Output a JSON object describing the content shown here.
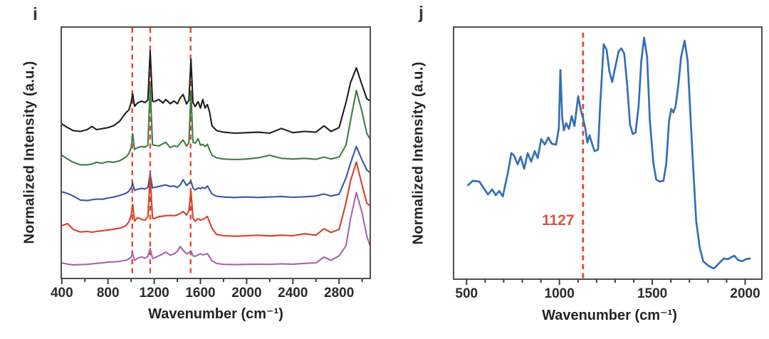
{
  "figure": {
    "background": "#ffffff",
    "axis_text_color": "#2b2b2b",
    "box_color": "#4f4f4f"
  },
  "chart_data": [
    {
      "id": "panel_i",
      "type": "line",
      "panel_label": "i",
      "xlabel": "Wavenumber (cm⁻¹)",
      "ylabel": "Normalized  Intensity (a.u.)",
      "y_unit": "normalized intensity, arbitrary units (curves offset-stacked; y = fraction of panel height)",
      "x_range": [
        395,
        3070
      ],
      "x_axis": {
        "major_ticks": [
          400,
          800,
          1200,
          1600,
          2000,
          2400,
          2800
        ],
        "minor_ticks": [
          600,
          1000,
          1400,
          1800,
          2200,
          2600,
          3000
        ]
      },
      "grid": false,
      "legend": false,
      "dashed_lines": [
        1010,
        1165,
        1515
      ],
      "dashed_color": "#e8462f",
      "x": [
        400,
        450,
        500,
        560,
        620,
        660,
        700,
        750,
        800,
        850,
        900,
        935,
        960,
        980,
        1000,
        1013,
        1030,
        1055,
        1090,
        1120,
        1145,
        1165,
        1185,
        1200,
        1240,
        1275,
        1300,
        1340,
        1370,
        1400,
        1425,
        1450,
        1480,
        1500,
        1518,
        1535,
        1555,
        1580,
        1600,
        1620,
        1640,
        1660,
        1680,
        1700,
        1740,
        1800,
        1900,
        2000,
        2100,
        2200,
        2300,
        2400,
        2500,
        2600,
        2670,
        2730,
        2800,
        2860,
        2900,
        2950,
        3000,
        3040,
        3070
      ],
      "series": [
        {
          "name": "spectrum-black",
          "color": "#1f1f1f",
          "y": [
            0.615,
            0.6,
            0.588,
            0.585,
            0.592,
            0.605,
            0.592,
            0.596,
            0.6,
            0.608,
            0.625,
            0.647,
            0.662,
            0.67,
            0.7,
            0.735,
            0.685,
            0.698,
            0.705,
            0.7,
            0.71,
            0.905,
            0.705,
            0.703,
            0.712,
            0.698,
            0.712,
            0.695,
            0.706,
            0.695,
            0.718,
            0.732,
            0.694,
            0.71,
            0.872,
            0.7,
            0.684,
            0.703,
            0.678,
            0.712,
            0.678,
            0.692,
            0.66,
            0.607,
            0.588,
            0.582,
            0.578,
            0.58,
            0.582,
            0.578,
            0.597,
            0.58,
            0.585,
            0.582,
            0.607,
            0.585,
            0.6,
            0.7,
            0.78,
            0.838,
            0.768,
            0.715,
            0.706
          ]
        },
        {
          "name": "spectrum-green",
          "color": "#3e7d46",
          "y": [
            0.49,
            0.475,
            0.462,
            0.452,
            0.452,
            0.455,
            0.462,
            0.458,
            0.465,
            0.462,
            0.468,
            0.477,
            0.485,
            0.497,
            0.52,
            0.576,
            0.513,
            0.52,
            0.525,
            0.522,
            0.53,
            0.768,
            0.532,
            0.53,
            0.527,
            0.536,
            0.542,
            0.52,
            0.528,
            0.524,
            0.538,
            0.551,
            0.527,
            0.54,
            0.74,
            0.542,
            0.538,
            0.556,
            0.53,
            0.534,
            0.525,
            0.534,
            0.51,
            0.49,
            0.48,
            0.475,
            0.473,
            0.475,
            0.48,
            0.49,
            0.478,
            0.475,
            0.478,
            0.474,
            0.483,
            0.475,
            0.483,
            0.53,
            0.63,
            0.748,
            0.66,
            0.578,
            0.553
          ]
        },
        {
          "name": "spectrum-blue",
          "color": "#3d55a5",
          "y": [
            0.345,
            0.338,
            0.328,
            0.312,
            0.31,
            0.313,
            0.316,
            0.315,
            0.32,
            0.324,
            0.33,
            0.335,
            0.34,
            0.347,
            0.36,
            0.379,
            0.35,
            0.355,
            0.358,
            0.356,
            0.362,
            0.415,
            0.36,
            0.362,
            0.366,
            0.37,
            0.372,
            0.366,
            0.368,
            0.362,
            0.372,
            0.393,
            0.37,
            0.378,
            0.387,
            0.36,
            0.352,
            0.36,
            0.357,
            0.362,
            0.358,
            0.368,
            0.352,
            0.336,
            0.327,
            0.324,
            0.322,
            0.324,
            0.322,
            0.324,
            0.326,
            0.323,
            0.325,
            0.328,
            0.336,
            0.328,
            0.335,
            0.4,
            0.46,
            0.525,
            0.47,
            0.432,
            0.42
          ]
        },
        {
          "name": "spectrum-red",
          "color": "#d93f28",
          "y": [
            0.21,
            0.218,
            0.195,
            0.185,
            0.187,
            0.184,
            0.187,
            0.19,
            0.193,
            0.196,
            0.2,
            0.205,
            0.213,
            0.225,
            0.25,
            0.295,
            0.228,
            0.242,
            0.235,
            0.232,
            0.245,
            0.407,
            0.24,
            0.238,
            0.246,
            0.248,
            0.25,
            0.251,
            0.25,
            0.253,
            0.258,
            0.266,
            0.252,
            0.27,
            0.347,
            0.24,
            0.228,
            0.238,
            0.232,
            0.235,
            0.24,
            0.247,
            0.222,
            0.2,
            0.175,
            0.17,
            0.168,
            0.17,
            0.172,
            0.169,
            0.172,
            0.17,
            0.178,
            0.172,
            0.198,
            0.183,
            0.195,
            0.3,
            0.39,
            0.463,
            0.37,
            0.3,
            0.288
          ]
        },
        {
          "name": "spectrum-purple",
          "color": "#a963ab",
          "y": [
            0.062,
            0.057,
            0.054,
            0.055,
            0.056,
            0.058,
            0.06,
            0.062,
            0.065,
            0.066,
            0.068,
            0.071,
            0.073,
            0.078,
            0.085,
            0.099,
            0.072,
            0.08,
            0.086,
            0.08,
            0.088,
            0.119,
            0.08,
            0.082,
            0.09,
            0.098,
            0.105,
            0.092,
            0.098,
            0.108,
            0.127,
            0.112,
            0.098,
            0.103,
            0.11,
            0.09,
            0.088,
            0.094,
            0.098,
            0.094,
            0.096,
            0.099,
            0.085,
            0.07,
            0.06,
            0.056,
            0.055,
            0.056,
            0.057,
            0.056,
            0.058,
            0.057,
            0.06,
            0.062,
            0.085,
            0.072,
            0.09,
            0.13,
            0.24,
            0.342,
            0.26,
            0.17,
            0.127
          ]
        }
      ],
      "annotations": []
    },
    {
      "id": "panel_j",
      "type": "line",
      "panel_label": "j",
      "xlabel": "Wavenumber (cm⁻¹)",
      "ylabel": "Normalized  Intensity (a.u.)",
      "y_unit": "normalized intensity, arbitrary units (y = fraction of panel height)",
      "x_range": [
        430,
        2090
      ],
      "x_axis": {
        "major_ticks": [
          500,
          1000,
          1500,
          2000
        ],
        "minor_ticks": [
          600,
          700,
          800,
          900,
          1100,
          1200,
          1300,
          1400,
          1600,
          1700,
          1800,
          1900
        ]
      },
      "grid": false,
      "legend": false,
      "dashed_lines": [
        1127
      ],
      "dashed_color": "#e8462f",
      "series": [
        {
          "name": "spectrum-blue",
          "color": "#3470b4",
          "x": [
            508,
            534,
            569,
            615,
            638,
            657,
            676,
            695,
            722,
            741,
            756,
            775,
            791,
            810,
            829,
            848,
            867,
            883,
            902,
            921,
            940,
            959,
            982,
            997,
            1005,
            1015,
            1024,
            1036,
            1051,
            1066,
            1081,
            1101,
            1116,
            1127,
            1139,
            1150,
            1162,
            1177,
            1189,
            1208,
            1219,
            1238,
            1254,
            1269,
            1284,
            1300,
            1319,
            1334,
            1349,
            1365,
            1380,
            1395,
            1410,
            1426,
            1441,
            1456,
            1472,
            1487,
            1506,
            1521,
            1540,
            1560,
            1575,
            1590,
            1602,
            1613,
            1625,
            1640,
            1655,
            1674,
            1690,
            1705,
            1720,
            1736,
            1755,
            1774,
            1801,
            1831,
            1858,
            1885,
            1908,
            1927,
            1942,
            1961,
            1984,
            2003,
            2026
          ],
          "y": [
            0.373,
            0.39,
            0.387,
            0.336,
            0.356,
            0.333,
            0.35,
            0.328,
            0.421,
            0.5,
            0.49,
            0.455,
            0.486,
            0.438,
            0.5,
            0.466,
            0.508,
            0.48,
            0.556,
            0.534,
            0.562,
            0.537,
            0.534,
            0.6,
            0.83,
            0.64,
            0.59,
            0.619,
            0.596,
            0.647,
            0.607,
            0.726,
            0.669,
            0.638,
            0.6,
            0.542,
            0.571,
            0.534,
            0.508,
            0.514,
            0.684,
            0.932,
            0.91,
            0.825,
            0.782,
            0.839,
            0.904,
            0.915,
            0.895,
            0.768,
            0.613,
            0.576,
            0.582,
            0.684,
            0.867,
            0.958,
            0.881,
            0.627,
            0.458,
            0.395,
            0.387,
            0.39,
            0.458,
            0.627,
            0.675,
            0.661,
            0.684,
            0.768,
            0.881,
            0.946,
            0.867,
            0.655,
            0.444,
            0.232,
            0.127,
            0.071,
            0.054,
            0.042,
            0.062,
            0.082,
            0.079,
            0.088,
            0.093,
            0.076,
            0.071,
            0.079,
            0.082
          ]
        }
      ],
      "annotations": [
        {
          "text": "1127",
          "x": 1080,
          "y_frac": 0.215,
          "anchor": "end",
          "color": "#d9544b",
          "font_size": 21
        }
      ]
    }
  ]
}
